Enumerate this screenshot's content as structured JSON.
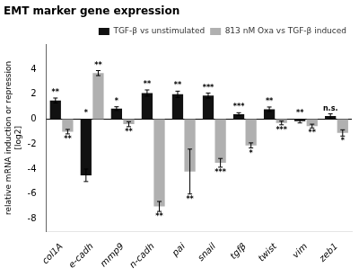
{
  "chart_data": {
    "type": "bar",
    "title": "EMT marker gene expression",
    "ylabel": "relative mRNA induction or repression\n[log2]",
    "categories": [
      "col1A",
      "e-cadh",
      "mmp9",
      "n-cadh",
      "pai",
      "snail",
      "tgfβ",
      "twist",
      "vim",
      "zeb1"
    ],
    "series": [
      {
        "name": "TGF-β vs unstimulated",
        "color": "#111111",
        "values": [
          1.5,
          -4.5,
          0.85,
          2.1,
          2.0,
          1.9,
          0.4,
          0.8,
          -0.15,
          0.25
        ],
        "errors": [
          0.2,
          0.5,
          0.15,
          0.25,
          0.25,
          0.2,
          0.12,
          0.18,
          0.15,
          0.18
        ],
        "annotations": [
          "**",
          "*",
          "*",
          "**",
          "**",
          "***",
          "***",
          "**",
          "**",
          "n.s."
        ]
      },
      {
        "name": "813 nM Oxa vs TGF-β induced",
        "color": "#b0b0b0",
        "values": [
          -1.0,
          3.7,
          -0.4,
          -7.0,
          -4.2,
          -3.5,
          -2.1,
          -0.3,
          -0.55,
          -1.1
        ],
        "errors": [
          0.18,
          0.2,
          0.2,
          0.4,
          1.8,
          0.35,
          0.2,
          0.15,
          0.15,
          0.25
        ],
        "annotations": [
          "**",
          "**",
          "**",
          "**",
          "**",
          "***",
          "*",
          "***",
          "**",
          "*"
        ]
      }
    ],
    "ylim": [
      -9,
      6
    ],
    "yticks": [
      -8,
      -6,
      -4,
      -2,
      0,
      2,
      4
    ],
    "grid": false,
    "legend": "upper right"
  }
}
